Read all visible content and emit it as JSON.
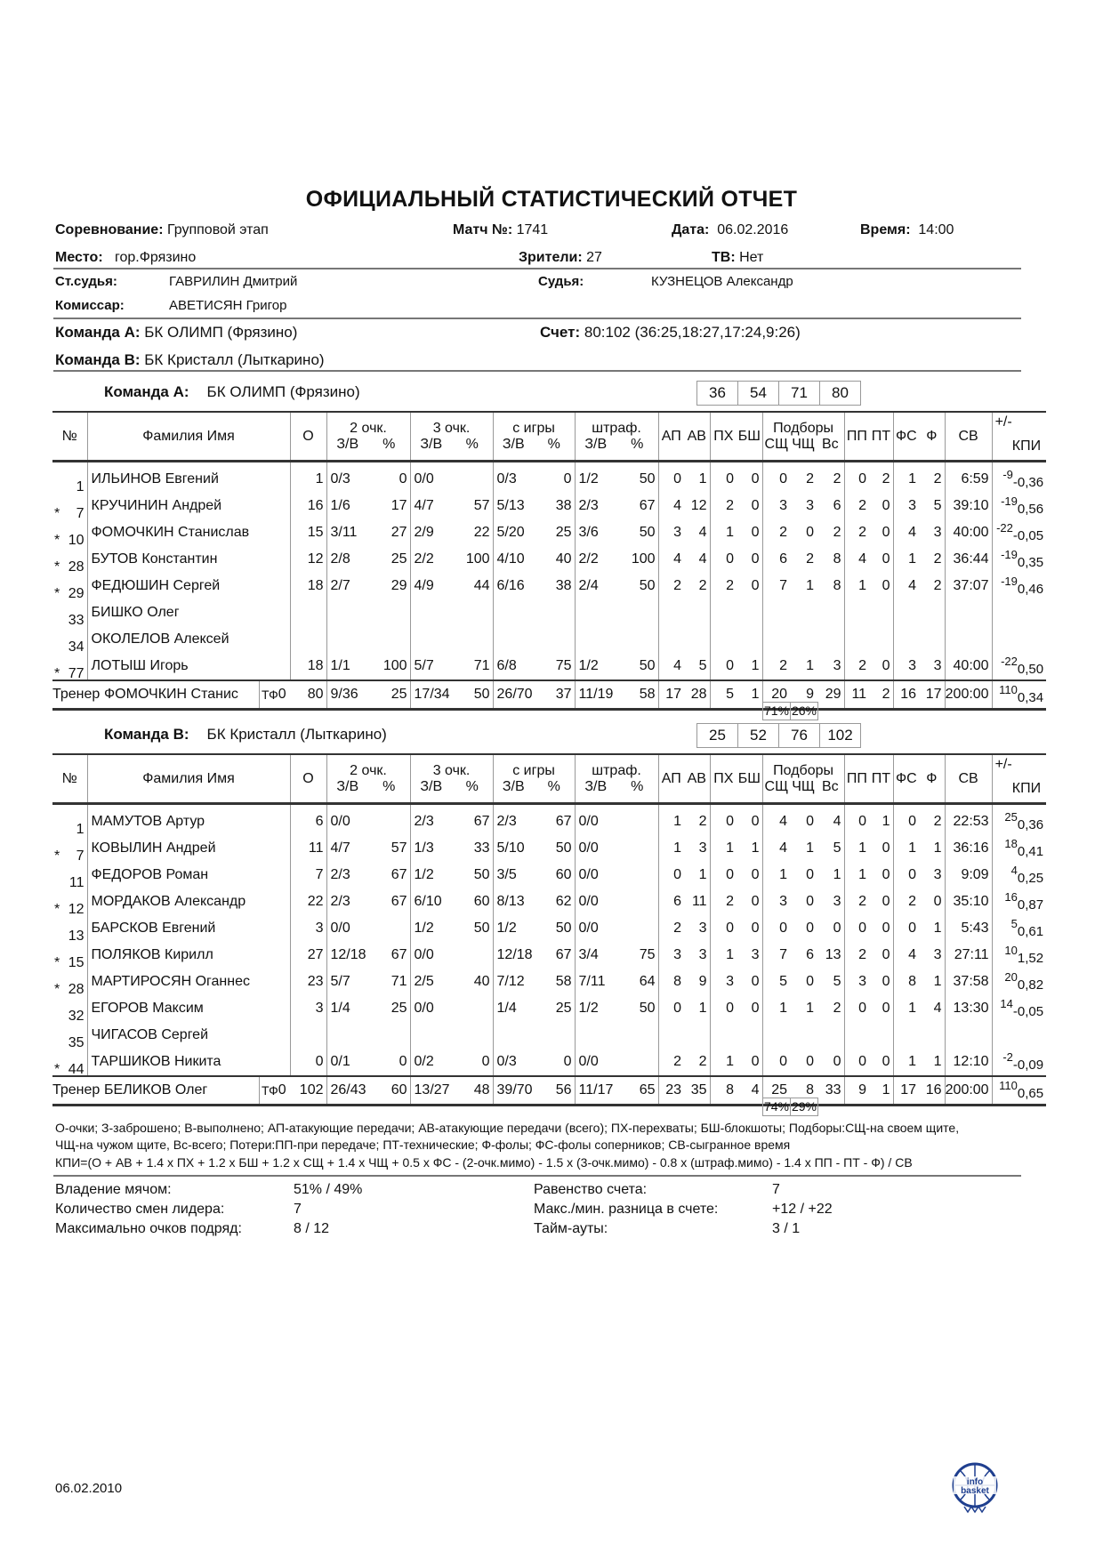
{
  "title": "ОФИЦИАЛЬНЫЙ СТАТИСТИЧЕСКИЙ ОТЧЕТ",
  "info": {
    "competition_label": "Соревнование:",
    "competition": "Групповой этап",
    "match_label": "Матч №:",
    "match": "1741",
    "date_label": "Дата:",
    "date": "06.02.2016",
    "time_label": "Время:",
    "time": "14:00",
    "place_label": "Место:",
    "place": "гор.Фрязино",
    "spectators_label": "Зрители:",
    "spectators": "27",
    "tv_label": "ТВ:",
    "tv": "Нет",
    "chief_ref_label": "Ст.судья:",
    "chief_ref": "ГАВРИЛИН Дмитрий",
    "ref_label": "Судья:",
    "ref": "КУЗНЕЦОВ Александр",
    "commissioner_label": "Комиссар:",
    "commissioner": "АВЕТИСЯН Григор",
    "team_a_label": "Команда А:",
    "team_a": "БК ОЛИМП (Фрязино)",
    "team_b_label": "Команда В:",
    "team_b": "БК Кристалл (Лыткарино)",
    "score_label": "Счет:",
    "score": "80:102 (36:25,18:27,17:24,9:26)"
  },
  "headers": {
    "no": "№",
    "name": "Фамилия Имя",
    "pts": "О",
    "p2": "2 очк.",
    "p3": "3 очк.",
    "fg": "с игры",
    "ft": "штраф.",
    "zv": "З/В",
    "pct": "%",
    "ap": "АП",
    "av": "АВ",
    "px": "ПХ",
    "bsh": "БШ",
    "reb": "Подборы",
    "oreb": "СЩ",
    "dreb": "ЧЩ",
    "treb": "Вс",
    "pp": "ПП",
    "pt": "ПТ",
    "fs": "ФС",
    "f": "Ф",
    "min": "СВ",
    "pm": "+/-",
    "kpi": "КПИ"
  },
  "teams": [
    {
      "label": "Команда А:",
      "name": "БК ОЛИМП (Фрязино)",
      "quarters": [
        "36",
        "54",
        "71",
        "80"
      ],
      "players": [
        [
          "",
          "1",
          "ИЛЬИНОВ Евгений",
          "1",
          "0/3",
          "0",
          "0/0",
          "",
          "0/3",
          "0",
          "1/2",
          "50",
          "0",
          "1",
          "0",
          "0",
          "0",
          "2",
          "2",
          "0",
          "2",
          "1",
          "2",
          "6:59",
          "-9",
          "-0,36"
        ],
        [
          "*",
          "7",
          "КРУЧИНИН Андрей",
          "16",
          "1/6",
          "17",
          "4/7",
          "57",
          "5/13",
          "38",
          "2/3",
          "67",
          "4",
          "12",
          "2",
          "0",
          "3",
          "3",
          "6",
          "2",
          "0",
          "3",
          "5",
          "39:10",
          "-19",
          "0,56"
        ],
        [
          "*",
          "10",
          "ФОМОЧКИН Станислав",
          "15",
          "3/11",
          "27",
          "2/9",
          "22",
          "5/20",
          "25",
          "3/6",
          "50",
          "3",
          "4",
          "1",
          "0",
          "2",
          "0",
          "2",
          "2",
          "0",
          "4",
          "3",
          "40:00",
          "-22",
          "-0,05"
        ],
        [
          "*",
          "28",
          "БУТОВ Константин",
          "12",
          "2/8",
          "25",
          "2/2",
          "100",
          "4/10",
          "40",
          "2/2",
          "100",
          "4",
          "4",
          "0",
          "0",
          "6",
          "2",
          "8",
          "4",
          "0",
          "1",
          "2",
          "36:44",
          "-19",
          "0,35"
        ],
        [
          "*",
          "29",
          "ФЕДЮШИН Сергей",
          "18",
          "2/7",
          "29",
          "4/9",
          "44",
          "6/16",
          "38",
          "2/4",
          "50",
          "2",
          "2",
          "2",
          "0",
          "7",
          "1",
          "8",
          "1",
          "0",
          "4",
          "2",
          "37:07",
          "-19",
          "0,46"
        ],
        [
          "",
          "33",
          "БИШКО Олег",
          "",
          "",
          "",
          "",
          "",
          "",
          "",
          "",
          "",
          "",
          "",
          "",
          "",
          "",
          "",
          "",
          "",
          "",
          "",
          "",
          "",
          "",
          ""
        ],
        [
          "",
          "34",
          "ОКОЛЕЛОВ Алексей",
          "",
          "",
          "",
          "",
          "",
          "",
          "",
          "",
          "",
          "",
          "",
          "",
          "",
          "",
          "",
          "",
          "",
          "",
          "",
          "",
          "",
          "",
          ""
        ],
        [
          "*",
          "77",
          "ЛОТЫШ Игорь",
          "18",
          "1/1",
          "100",
          "5/7",
          "71",
          "6/8",
          "75",
          "1/2",
          "50",
          "4",
          "5",
          "0",
          "1",
          "2",
          "1",
          "3",
          "2",
          "0",
          "3",
          "3",
          "40:00",
          "-22",
          "0,50"
        ]
      ],
      "totals": {
        "coach_label": "Тренер",
        "coach": "ФОМОЧКИН Станис",
        "tf_label": "ТФ",
        "tf": "0",
        "values": [
          "80",
          "9/36",
          "25",
          "17/34",
          "50",
          "26/70",
          "37",
          "11/19",
          "58",
          "17",
          "28",
          "5",
          "1",
          "20",
          "9",
          "29",
          "11",
          "2",
          "16",
          "17",
          "200:00",
          "110",
          "0,34"
        ]
      },
      "reb_pct": [
        "71%",
        "26%"
      ]
    },
    {
      "label": "Команда В:",
      "name": "БК Кристалл (Лыткарино)",
      "quarters": [
        "25",
        "52",
        "76",
        "102"
      ],
      "players": [
        [
          "",
          "1",
          "МАМУТОВ Артур",
          "6",
          "0/0",
          "",
          "2/3",
          "67",
          "2/3",
          "67",
          "0/0",
          "",
          "1",
          "2",
          "0",
          "0",
          "4",
          "0",
          "4",
          "0",
          "1",
          "0",
          "2",
          "22:53",
          "25",
          "0,36"
        ],
        [
          "*",
          "7",
          "КОВЫЛИН Андрей",
          "11",
          "4/7",
          "57",
          "1/3",
          "33",
          "5/10",
          "50",
          "0/0",
          "",
          "1",
          "3",
          "1",
          "1",
          "4",
          "1",
          "5",
          "1",
          "0",
          "1",
          "1",
          "36:16",
          "18",
          "0,41"
        ],
        [
          "",
          "11",
          "ФЕДОРОВ Роман",
          "7",
          "2/3",
          "67",
          "1/2",
          "50",
          "3/5",
          "60",
          "0/0",
          "",
          "0",
          "1",
          "0",
          "0",
          "1",
          "0",
          "1",
          "1",
          "0",
          "0",
          "3",
          "9:09",
          "4",
          "0,25"
        ],
        [
          "*",
          "12",
          "МОРДАКОВ Александр",
          "22",
          "2/3",
          "67",
          "6/10",
          "60",
          "8/13",
          "62",
          "0/0",
          "",
          "6",
          "11",
          "2",
          "0",
          "3",
          "0",
          "3",
          "2",
          "0",
          "2",
          "0",
          "35:10",
          "16",
          "0,87"
        ],
        [
          "",
          "13",
          "БАРСКОВ Евгений",
          "3",
          "0/0",
          "",
          "1/2",
          "50",
          "1/2",
          "50",
          "0/0",
          "",
          "2",
          "3",
          "0",
          "0",
          "0",
          "0",
          "0",
          "0",
          "0",
          "0",
          "1",
          "5:43",
          "5",
          "0,61"
        ],
        [
          "*",
          "15",
          "ПОЛЯКОВ Кирилл",
          "27",
          "12/18",
          "67",
          "0/0",
          "",
          "12/18",
          "67",
          "3/4",
          "75",
          "3",
          "3",
          "1",
          "3",
          "7",
          "6",
          "13",
          "2",
          "0",
          "4",
          "3",
          "27:11",
          "10",
          "1,52"
        ],
        [
          "*",
          "28",
          "МАРТИРОСЯН Оганнес",
          "23",
          "5/7",
          "71",
          "2/5",
          "40",
          "7/12",
          "58",
          "7/11",
          "64",
          "8",
          "9",
          "3",
          "0",
          "5",
          "0",
          "5",
          "3",
          "0",
          "8",
          "1",
          "37:58",
          "20",
          "0,82"
        ],
        [
          "",
          "32",
          "ЕГОРОВ Максим",
          "3",
          "1/4",
          "25",
          "0/0",
          "",
          "1/4",
          "25",
          "1/2",
          "50",
          "0",
          "1",
          "0",
          "0",
          "1",
          "1",
          "2",
          "0",
          "0",
          "1",
          "4",
          "13:30",
          "14",
          "-0,05"
        ],
        [
          "",
          "35",
          "ЧИГАСОВ Сергей",
          "",
          "",
          "",
          "",
          "",
          "",
          "",
          "",
          "",
          "",
          "",
          "",
          "",
          "",
          "",
          "",
          "",
          "",
          "",
          "",
          "",
          "",
          ""
        ],
        [
          "*",
          "44",
          "ТАРШИКОВ Никита",
          "0",
          "0/1",
          "0",
          "0/2",
          "0",
          "0/3",
          "0",
          "0/0",
          "",
          "2",
          "2",
          "1",
          "0",
          "0",
          "0",
          "0",
          "0",
          "0",
          "1",
          "1",
          "12:10",
          "-2",
          "-0,09"
        ]
      ],
      "totals": {
        "coach_label": "Тренер",
        "coach": "БЕЛИКОВ Олег",
        "tf_label": "ТФ",
        "tf": "0",
        "values": [
          "102",
          "26/43",
          "60",
          "13/27",
          "48",
          "39/70",
          "56",
          "11/17",
          "65",
          "23",
          "35",
          "8",
          "4",
          "25",
          "8",
          "33",
          "9",
          "1",
          "17",
          "16",
          "200:00",
          "110",
          "0,65"
        ]
      },
      "reb_pct": [
        "74%",
        "29%"
      ]
    }
  ],
  "legend": [
    "О-очки; З-заброшено; В-выполнено; АП-атакующие передачи; АВ-атакующие передачи (всего); ПХ-перехваты; БШ-блокшоты; Подборы:СЩ-на своем щите,",
    "ЧЩ-на чужом щите, Вс-всего; Потери:ПП-при передаче; ПТ-технические; Ф-фолы; ФС-фолы соперников; СВ-сыгранное время",
    "КПИ=(О + АВ + 1.4 х ПХ + 1.2 х БШ + 1.2 х СЩ + 1.4 х ЧЩ + 0.5 х ФС - (2-очк.мимо) - 1.5 х (3-очк.мимо) - 0.8 х (штраф.мимо) - 1.4 х ПП - ПТ - Ф) / СВ"
  ],
  "summary": {
    "possession_label": "Владение мячом:",
    "possession": "51% / 49%",
    "lead_changes_label": "Количество смен лидера:",
    "lead_changes": "7",
    "max_run_label": "Максимально очков подряд:",
    "max_run": "8 / 12",
    "ties_label": "Равенство счета:",
    "ties": "7",
    "max_diff_label": "Макс./мин. разница в счете:",
    "max_diff": "+12 / +22",
    "timeouts_label": "Тайм-ауты:",
    "timeouts": "3 / 1"
  },
  "footer": {
    "date": "06.02.2010",
    "logo_text": "info basket"
  },
  "colors": {
    "rule": "#777777",
    "text": "#111111",
    "logo": "#1f3f8f"
  }
}
